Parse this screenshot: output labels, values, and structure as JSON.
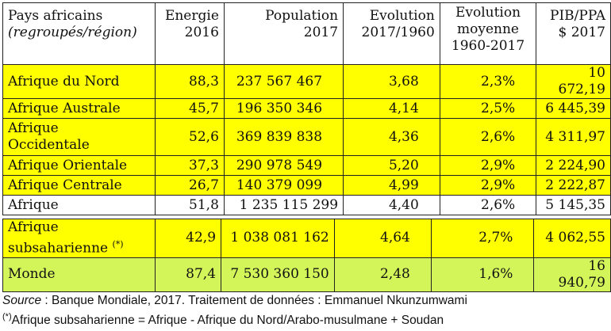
{
  "headers": {
    "region_line1": "Pays africains",
    "region_line2": "(regroupés/région)",
    "energie_line1": "Energie",
    "energie_line2": "2016",
    "population_line1": "Population",
    "population_line2": "2017",
    "evolution_line1": "Evolution",
    "evolution_line2": "2017/1960",
    "evolmoy_line1": "Evolution",
    "evolmoy_line2": "moyenne",
    "evolmoy_line3": "1960-2017",
    "pib_line1": "PIB/PPA",
    "pib_line2": "$ 2017"
  },
  "rows": [
    {
      "region": "Afrique du Nord",
      "energie": "88,3",
      "population": "237 567 467",
      "evolution": "3,68",
      "evolmoy": "2,3%",
      "pib": "10 672,19"
    },
    {
      "region": "Afrique Australe",
      "energie": "45,7",
      "population": "196 350 346",
      "evolution": "4,14",
      "evolmoy": "2,5%",
      "pib": "6 445,39"
    },
    {
      "region_line1": "Afrique",
      "region_line2": "Occidentale",
      "energie": "52,6",
      "population": "369 839 838",
      "evolution": "4,36",
      "evolmoy": "2,6%",
      "pib": "4 311,97"
    },
    {
      "region": "Afrique Orientale",
      "energie": "37,3",
      "population": "290 978 549",
      "evolution": "5,20",
      "evolmoy": "2,9%",
      "pib": "2 224,90"
    },
    {
      "region": "Afrique Centrale",
      "energie": "26,7",
      "population": "140 379 099",
      "evolution": "4,99",
      "evolmoy": "2,9%",
      "pib": "2 222,87"
    },
    {
      "region": "Afrique",
      "energie": "51,8",
      "population": "1 235 115 299",
      "evolution": "4,40",
      "evolmoy": "2,6%",
      "pib": "5 145,35"
    }
  ],
  "sub_rows": [
    {
      "region_line1": "Afrique",
      "region_line2": "subsaharienne",
      "note_mark": "(*)",
      "energie": "42,9",
      "population": "1 038 081 162",
      "evolution": "4,64",
      "evolmoy": "2,7%",
      "pib": "4 062,55"
    },
    {
      "region": "Monde",
      "energie": "87,4",
      "population": "7 530 360 150",
      "evolution": "2,48",
      "evolmoy": "1,6%",
      "pib": "16 940,79"
    }
  ],
  "footer": {
    "source_label": "Source",
    "source_text": " : Banque Mondiale, 2017. Traitement de données : Emmanuel Nkunzumwami",
    "note_mark": "(*)",
    "note_text": "Afrique subsaharienne  = Afrique - Afrique du Nord/Arabo-musulmane + Soudan"
  },
  "colors": {
    "highlight_yellow": "#ffff00",
    "highlight_green": "#d4f55a",
    "border": "#222222"
  }
}
